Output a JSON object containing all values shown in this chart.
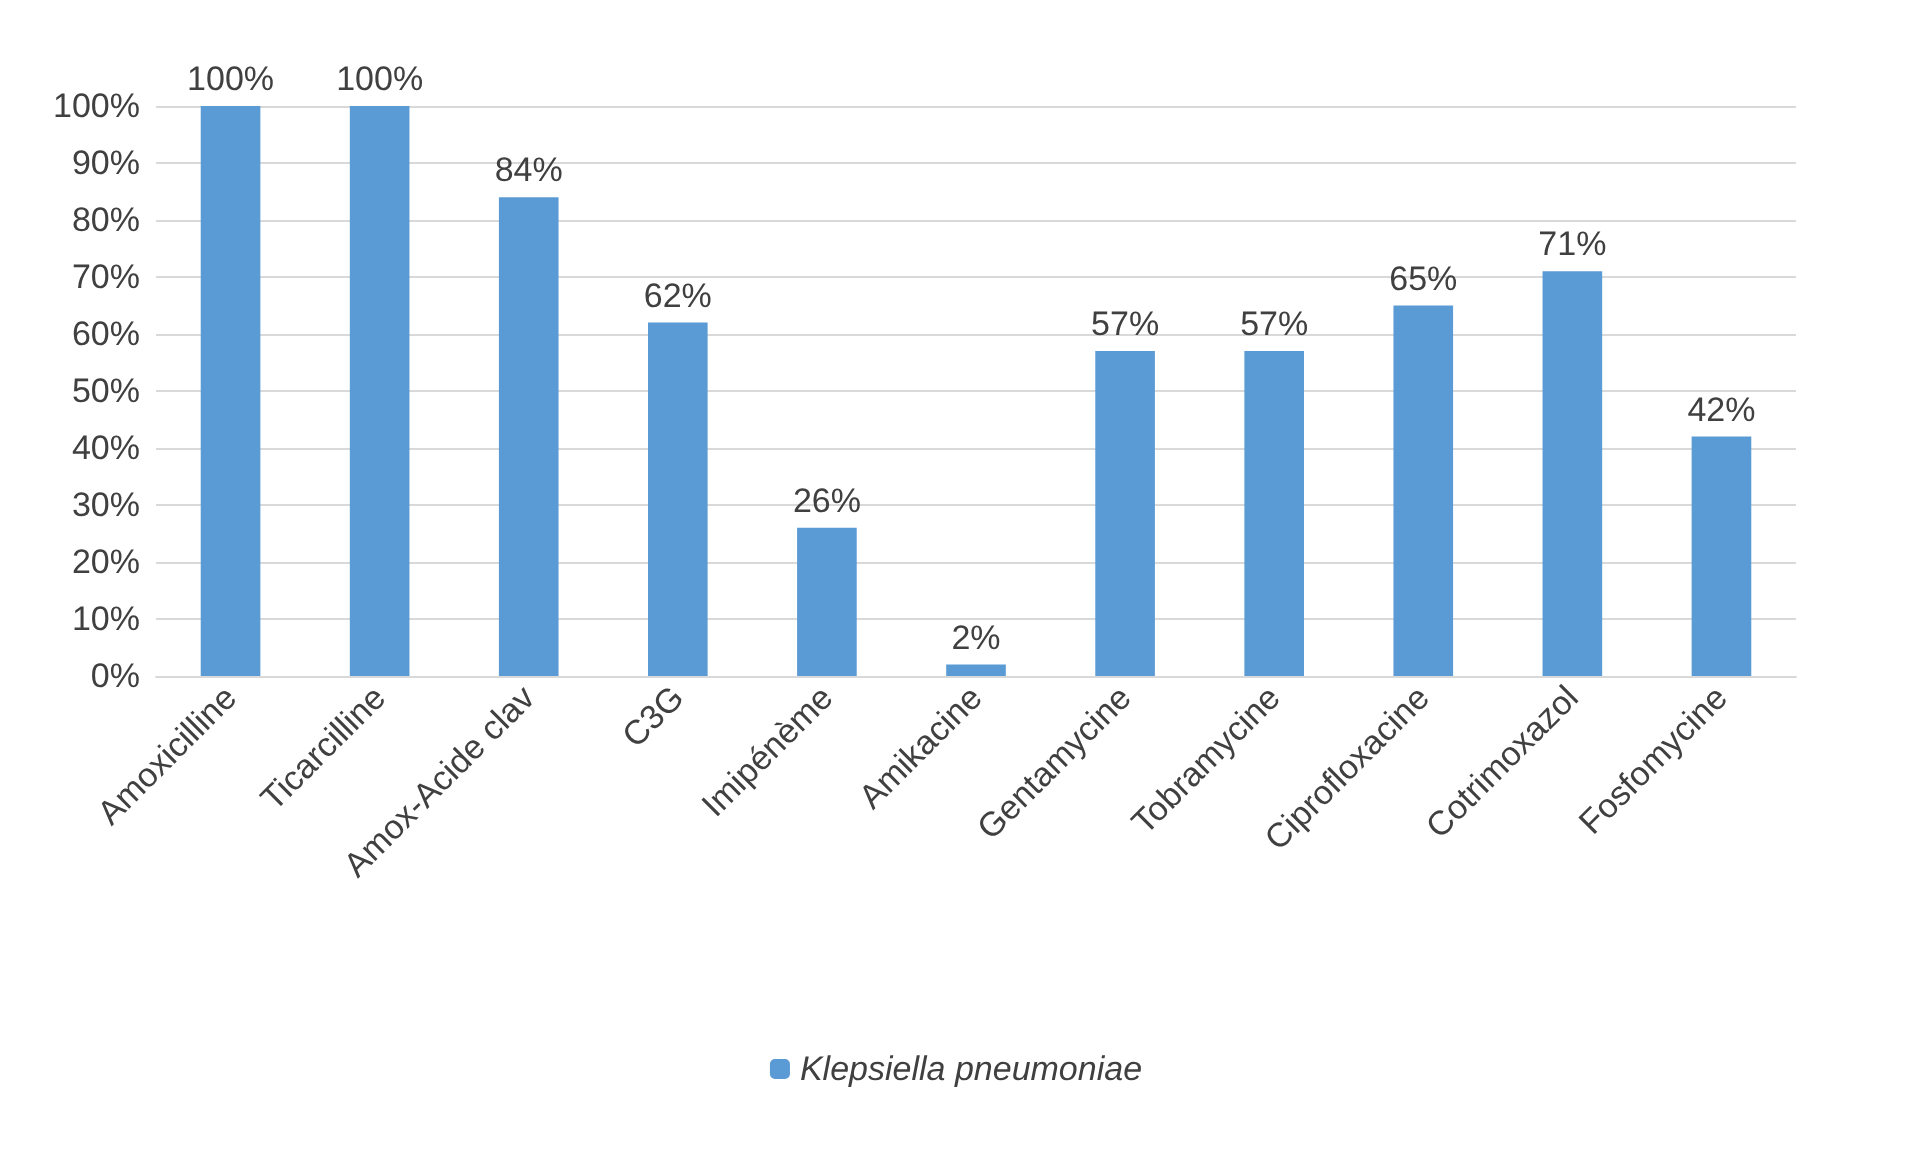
{
  "chart_data": {
    "type": "bar",
    "categories": [
      "Amoxicilline",
      "Ticarcilline",
      "Amox-Acide clav",
      "C3G",
      "Imipénème",
      "Amikacine",
      "Gentamycine",
      "Tobramycine",
      "Ciprofloxacine",
      "Cotrimoxazol",
      "Fosfomycine"
    ],
    "series": [
      {
        "name": "Klepsiella pneumoniae",
        "color": "#5b9bd5",
        "values": [
          100,
          100,
          84,
          62,
          26,
          2,
          57,
          57,
          65,
          71,
          42
        ],
        "value_labels": [
          "100%",
          "100%",
          "84%",
          "62%",
          "26%",
          "2%",
          "57%",
          "57%",
          "65%",
          "71%",
          "42%"
        ]
      }
    ],
    "ylim": [
      0,
      100
    ],
    "yticks": [
      {
        "value": 0,
        "label": "0%"
      },
      {
        "value": 10,
        "label": "10%"
      },
      {
        "value": 20,
        "label": "20%"
      },
      {
        "value": 30,
        "label": "30%"
      },
      {
        "value": 40,
        "label": "40%"
      },
      {
        "value": 50,
        "label": "50%"
      },
      {
        "value": 60,
        "label": "60%"
      },
      {
        "value": 70,
        "label": "70%"
      },
      {
        "value": 80,
        "label": "80%"
      },
      {
        "value": 90,
        "label": "90%"
      },
      {
        "value": 100,
        "label": "100%"
      }
    ],
    "grid": "y",
    "legend": "bottom"
  }
}
